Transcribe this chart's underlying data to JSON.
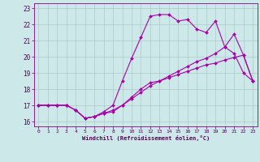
{
  "background_color": "#cce8e8",
  "grid_color": "#aacaca",
  "line_color": "#aa00aa",
  "xlim": [
    -0.5,
    23.5
  ],
  "ylim": [
    15.7,
    23.3
  ],
  "xticks": [
    0,
    1,
    2,
    3,
    4,
    5,
    6,
    7,
    8,
    9,
    10,
    11,
    12,
    13,
    14,
    15,
    16,
    17,
    18,
    19,
    20,
    21,
    22,
    23
  ],
  "yticks": [
    16,
    17,
    18,
    19,
    20,
    21,
    22,
    23
  ],
  "xlabel": "Windchill (Refroidissement éolien,°C)",
  "series": [
    {
      "x": [
        0,
        1,
        2,
        3,
        4,
        5,
        6,
        7,
        8,
        9,
        10,
        11,
        12,
        13,
        14,
        15,
        16,
        17,
        18,
        19,
        20,
        21,
        22,
        23
      ],
      "y": [
        17,
        17,
        17,
        17,
        16.7,
        16.2,
        16.3,
        16.5,
        16.6,
        17.0,
        17.5,
        18.0,
        18.4,
        18.5,
        18.7,
        18.9,
        19.1,
        19.3,
        19.5,
        19.6,
        19.8,
        19.95,
        20.1,
        18.5
      ]
    },
    {
      "x": [
        0,
        1,
        2,
        3,
        4,
        5,
        6,
        7,
        8,
        9,
        10,
        11,
        12,
        13,
        14,
        15,
        16,
        17,
        18,
        19,
        20,
        21,
        22,
        23
      ],
      "y": [
        17,
        17,
        17,
        17,
        16.7,
        16.2,
        16.3,
        16.6,
        17.0,
        18.5,
        19.9,
        21.2,
        22.5,
        22.6,
        22.6,
        22.2,
        22.3,
        21.7,
        21.5,
        22.2,
        20.6,
        20.2,
        19.0,
        18.5
      ]
    },
    {
      "x": [
        0,
        1,
        2,
        3,
        4,
        5,
        6,
        7,
        8,
        9,
        10,
        11,
        12,
        13,
        14,
        15,
        16,
        17,
        18,
        19,
        20,
        21,
        22,
        23
      ],
      "y": [
        17,
        17,
        17,
        17,
        16.7,
        16.2,
        16.3,
        16.5,
        16.7,
        17.0,
        17.4,
        17.8,
        18.2,
        18.5,
        18.8,
        19.1,
        19.4,
        19.7,
        19.9,
        20.2,
        20.6,
        21.4,
        20.1,
        18.5
      ]
    }
  ]
}
